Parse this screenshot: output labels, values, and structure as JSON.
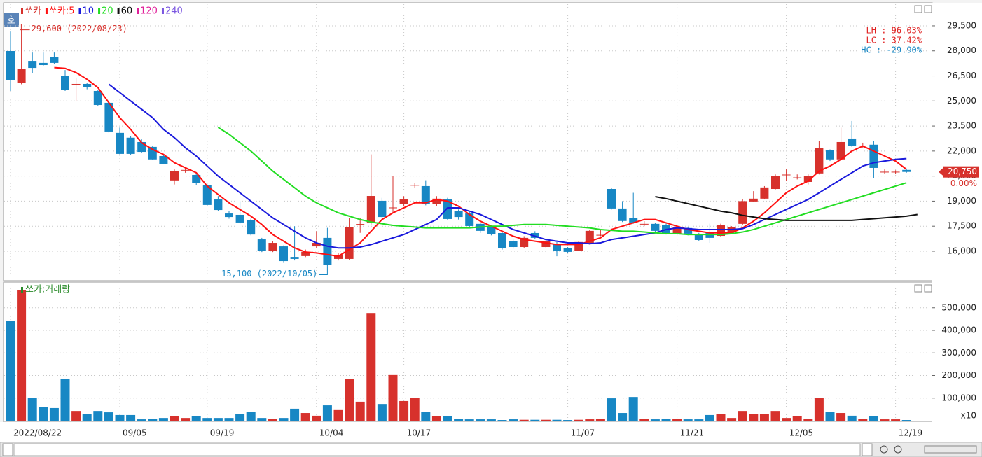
{
  "chart_data": {
    "type": "candlestick",
    "series_name": "쏘카",
    "up_color": "#d7312c",
    "down_color": "#1787c4",
    "categories": [
      "2022/08/22",
      null,
      null,
      null,
      null,
      null,
      null,
      null,
      null,
      null,
      "09/05",
      null,
      null,
      null,
      null,
      null,
      null,
      null,
      "09/19",
      null,
      null,
      null,
      null,
      null,
      null,
      null,
      null,
      null,
      "10/04",
      null,
      null,
      null,
      null,
      null,
      null,
      null,
      "10/17",
      null,
      null,
      null,
      null,
      null,
      null,
      null,
      null,
      null,
      null,
      null,
      null,
      null,
      null,
      "11/07",
      null,
      null,
      null,
      null,
      null,
      null,
      null,
      null,
      null,
      "11/21",
      null,
      null,
      null,
      null,
      null,
      null,
      null,
      null,
      null,
      "12/05",
      null,
      null,
      null,
      null,
      null,
      null,
      null,
      null,
      null,
      "12/19",
      null
    ],
    "open": [
      27990,
      26100,
      27400,
      27280,
      27620,
      26520,
      26000,
      26020,
      25600,
      24890,
      23090,
      22800,
      22540,
      22250,
      21700,
      20240,
      20850,
      20570,
      19940,
      19100,
      18260,
      18180,
      17850,
      16710,
      16040,
      16290,
      15660,
      15710,
      16290,
      16800,
      15540,
      15540,
      17600,
      17720,
      19020,
      18600,
      18810,
      19940,
      19900,
      18810,
      19100,
      18390,
      18260,
      17640,
      17430,
      17090,
      16590,
      16250,
      17090,
      16250,
      16460,
      16170,
      16040,
      16460,
      16960,
      19730,
      18560,
      17970,
      17600,
      17640,
      17560,
      17010,
      17390,
      17010,
      17130,
      16920,
      17170,
      17640,
      18980,
      19150,
      19730,
      20570,
      20400,
      20150,
      20660,
      22040,
      21500,
      22750,
      22310,
      22380,
      20740,
      20740,
      20870
    ],
    "high": [
      29160,
      29600,
      27900,
      27900,
      27900,
      26850,
      26400,
      26100,
      25650,
      25000,
      23400,
      22900,
      22700,
      22300,
      21800,
      20900,
      21000,
      20700,
      20000,
      19300,
      18400,
      19000,
      17950,
      16800,
      16600,
      16350,
      17500,
      16100,
      17200,
      17400,
      15900,
      18000,
      18000,
      21800,
      19200,
      20500,
      19300,
      20100,
      20250,
      19300,
      19200,
      18500,
      18350,
      17700,
      17500,
      17150,
      16700,
      16900,
      17200,
      16700,
      16550,
      16250,
      16600,
      17300,
      17300,
      19800,
      19000,
      19500,
      17800,
      17700,
      17650,
      17500,
      17450,
      17100,
      17650,
      17650,
      17500,
      19100,
      19600,
      19900,
      20600,
      20900,
      20600,
      20600,
      22600,
      22100,
      23400,
      23800,
      22500,
      22600,
      20900,
      20850,
      20950
    ],
    "low": [
      25600,
      26000,
      26650,
      27100,
      27200,
      25600,
      25000,
      25700,
      24700,
      23100,
      21800,
      21750,
      21900,
      21450,
      21200,
      20000,
      20700,
      19950,
      18700,
      18400,
      17950,
      17650,
      16950,
      15950,
      15950,
      15300,
      15450,
      15650,
      16200,
      15100,
      15450,
      15500,
      17100,
      17600,
      17950,
      18300,
      18700,
      19800,
      18750,
      18700,
      17850,
      17900,
      17400,
      17100,
      16950,
      16100,
      16150,
      16200,
      16750,
      16200,
      15700,
      15900,
      16000,
      16400,
      16900,
      18500,
      17750,
      17650,
      17500,
      17100,
      17000,
      16950,
      16950,
      16600,
      16500,
      16850,
      17100,
      17550,
      18950,
      19100,
      19700,
      20200,
      20300,
      20000,
      20600,
      21400,
      21450,
      22250,
      22200,
      20400,
      20650,
      20650,
      20700
    ],
    "close": [
      26230,
      26940,
      26980,
      27150,
      27280,
      25680,
      26020,
      25810,
      24760,
      23170,
      21830,
      21830,
      21950,
      21500,
      21240,
      20780,
      20870,
      20070,
      18770,
      18470,
      18050,
      17720,
      17000,
      16040,
      16500,
      15410,
      15540,
      15960,
      16500,
      15200,
      15790,
      17430,
      17630,
      19310,
      18050,
      18620,
      19100,
      19970,
      18810,
      19150,
      17930,
      18050,
      17510,
      17220,
      17010,
      16170,
      16250,
      16800,
      16800,
      16590,
      16040,
      15960,
      16550,
      17220,
      16980,
      18560,
      17810,
      17720,
      17640,
      17220,
      17090,
      17430,
      17050,
      16670,
      16800,
      17560,
      17430,
      19000,
      19150,
      19820,
      20490,
      20590,
      20420,
      20490,
      22170,
      21500,
      22540,
      22330,
      22330,
      20990,
      20760,
      20760,
      20750
    ],
    "ylim": [
      14280,
      30840
    ],
    "yticks": [
      {
        "value": 16000,
        "label": "16,000"
      },
      {
        "value": 17500,
        "label": "17,500"
      },
      {
        "value": 19000,
        "label": "19,000"
      },
      {
        "value": 20500,
        "label": "20,500"
      },
      {
        "value": 22000,
        "label": "22,000"
      },
      {
        "value": 23500,
        "label": "23,500"
      },
      {
        "value": 25000,
        "label": "25,000"
      },
      {
        "value": 26500,
        "label": "26,500"
      },
      {
        "value": 28000,
        "label": "28,000"
      },
      {
        "value": 29500,
        "label": "29,500"
      }
    ],
    "grid": true,
    "moving_averages": [
      {
        "name": "쏘카:5",
        "color": "#ff1010",
        "values": [
          null,
          null,
          null,
          null,
          27000,
          26950,
          26700,
          26300,
          25800,
          24900,
          24000,
          23300,
          22500,
          22100,
          21800,
          21300,
          21000,
          20700,
          19900,
          19400,
          18900,
          18500,
          18100,
          17600,
          17000,
          16600,
          16200,
          15950,
          15900,
          15800,
          15700,
          16100,
          16500,
          17200,
          17900,
          18300,
          18600,
          18900,
          18900,
          19100,
          19000,
          18700,
          18200,
          17800,
          17500,
          17200,
          16900,
          16700,
          16600,
          16500,
          16400,
          16400,
          16400,
          16600,
          16800,
          17300,
          17500,
          17700,
          17900,
          17900,
          17700,
          17500,
          17300,
          17200,
          17100,
          17100,
          17100,
          17400,
          17800,
          18300,
          18900,
          19500,
          19900,
          20200,
          20800,
          21100,
          21500,
          22000,
          22300,
          22000,
          21700,
          21400,
          20900
        ]
      },
      {
        "name": "10",
        "color": "#1a1adc",
        "values": [
          null,
          null,
          null,
          null,
          null,
          null,
          null,
          null,
          null,
          26000,
          25500,
          25000,
          24500,
          24000,
          23300,
          22800,
          22200,
          21700,
          21100,
          20500,
          20000,
          19500,
          19000,
          18500,
          18000,
          17600,
          17200,
          16800,
          16500,
          16300,
          16200,
          16200,
          16250,
          16400,
          16600,
          16800,
          17000,
          17300,
          17600,
          17900,
          18600,
          18600,
          18400,
          18200,
          17900,
          17600,
          17300,
          17100,
          16900,
          16700,
          16600,
          16500,
          16500,
          16450,
          16500,
          16700,
          16800,
          16900,
          17000,
          17100,
          17300,
          17400,
          17350,
          17300,
          17300,
          17300,
          17300,
          17350,
          17600,
          17900,
          18200,
          18500,
          18800,
          19100,
          19500,
          19900,
          20300,
          20700,
          21100,
          21300,
          21400,
          21500,
          21550
        ]
      },
      {
        "name": "20",
        "color": "#22dd22",
        "values": [
          null,
          null,
          null,
          null,
          null,
          null,
          null,
          null,
          null,
          null,
          null,
          null,
          null,
          null,
          null,
          null,
          null,
          null,
          null,
          23420,
          23000,
          22500,
          22000,
          21400,
          20800,
          20300,
          19800,
          19300,
          18900,
          18600,
          18300,
          18100,
          17900,
          17750,
          17650,
          17550,
          17500,
          17450,
          17400,
          17400,
          17400,
          17400,
          17400,
          17450,
          17500,
          17500,
          17550,
          17600,
          17600,
          17600,
          17550,
          17500,
          17450,
          17400,
          17300,
          17250,
          17200,
          17200,
          17150,
          17100,
          17050,
          17050,
          17000,
          17000,
          17000,
          17000,
          17050,
          17150,
          17300,
          17500,
          17700,
          17900,
          18100,
          18300,
          18500,
          18700,
          18900,
          19100,
          19300,
          19500,
          19700,
          19900,
          20100
        ]
      },
      {
        "name": "60",
        "color": "#111111",
        "values": [
          null,
          null,
          null,
          null,
          null,
          null,
          null,
          null,
          null,
          null,
          null,
          null,
          null,
          null,
          null,
          null,
          null,
          null,
          null,
          null,
          null,
          null,
          null,
          null,
          null,
          null,
          null,
          null,
          null,
          null,
          null,
          null,
          null,
          null,
          null,
          null,
          null,
          null,
          null,
          null,
          null,
          null,
          null,
          null,
          null,
          null,
          null,
          null,
          null,
          null,
          null,
          null,
          null,
          null,
          null,
          null,
          null,
          null,
          null,
          19270,
          19150,
          19000,
          18850,
          18700,
          18550,
          18400,
          18300,
          18150,
          18050,
          17950,
          17900,
          17850,
          17850,
          17850,
          17850,
          17850,
          17850,
          17850,
          17900,
          17950,
          18000,
          18050,
          18100,
          18200
        ]
      }
    ],
    "legend_extra": [
      {
        "name": "120",
        "color": "#e0209a"
      },
      {
        "name": "240",
        "color": "#7a55e0"
      }
    ],
    "high_annotation": {
      "value": 29600,
      "label": "29,600 (2022/08/23)"
    },
    "low_annotation": {
      "value": 15100,
      "label": "15,100 (2022/10/05)"
    },
    "stats": [
      {
        "label": "LH :  96.03%",
        "color": "#e02020"
      },
      {
        "label": "LC :  37.42%",
        "color": "#e02020"
      },
      {
        "label": "HC : -29.90%",
        "color": "#1787c4"
      }
    ],
    "last_price": {
      "value": 20750,
      "label": "20,750"
    },
    "change": "0.00%",
    "volume": {
      "title": "쏘카:거래량",
      "values": [
        443000,
        577000,
        102000,
        59000,
        56000,
        186000,
        43000,
        28000,
        43000,
        37000,
        25000,
        25000,
        6000,
        9000,
        12000,
        19000,
        12000,
        19000,
        12000,
        12000,
        12000,
        31000,
        40000,
        12000,
        9000,
        12000,
        53000,
        34000,
        22000,
        68000,
        47000,
        183000,
        84000,
        477000,
        74000,
        202000,
        87000,
        102000,
        40000,
        19000,
        19000,
        9000,
        6000,
        6000,
        6000,
        3000,
        6000,
        4000,
        4000,
        4000,
        4000,
        3000,
        4000,
        6000,
        8000,
        99000,
        34000,
        105000,
        9000,
        6000,
        9000,
        9000,
        6000,
        6000,
        25000,
        28000,
        12000,
        43000,
        28000,
        31000,
        43000,
        12000,
        19000,
        9000,
        102000,
        40000,
        34000,
        22000,
        9000,
        19000,
        6000,
        6000,
        3000
      ],
      "ylim": [
        0,
        614000
      ],
      "yticks": [
        {
          "value": 100000,
          "label": "100,000"
        },
        {
          "value": 200000,
          "label": "200,000"
        },
        {
          "value": 300000,
          "label": "300,000"
        },
        {
          "value": 400000,
          "label": "400,000"
        },
        {
          "value": 500000,
          "label": "500,000"
        }
      ],
      "unit": "x10"
    }
  },
  "button": "호"
}
